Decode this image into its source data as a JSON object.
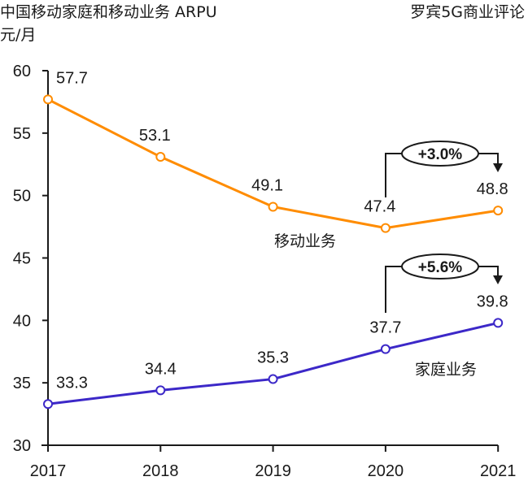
{
  "header": {
    "title": "中国移动家庭和移动业务 ARPU",
    "unit": "元/月",
    "source": "罗宾5G商业评论"
  },
  "chart_data": {
    "type": "line",
    "title": "中国移动家庭和移动业务 ARPU",
    "ylabel": "元/月",
    "xlabel": "",
    "categories": [
      "2017",
      "2018",
      "2019",
      "2020",
      "2021"
    ],
    "ylim": [
      30,
      60
    ],
    "yticks": [
      30,
      35,
      40,
      45,
      50,
      55,
      60
    ],
    "grid": false,
    "series": [
      {
        "name": "移动业务",
        "color": "#ff8c00",
        "values": [
          57.7,
          53.1,
          49.1,
          47.4,
          48.8
        ]
      },
      {
        "name": "家庭业务",
        "color": "#3c28c8",
        "values": [
          33.3,
          34.4,
          35.3,
          37.7,
          39.8
        ]
      }
    ],
    "annotations": [
      {
        "series": "移动业务",
        "from": "2020",
        "to": "2021",
        "label": "+3.0%"
      },
      {
        "series": "家庭业务",
        "from": "2020",
        "to": "2021",
        "label": "+5.6%"
      }
    ]
  }
}
